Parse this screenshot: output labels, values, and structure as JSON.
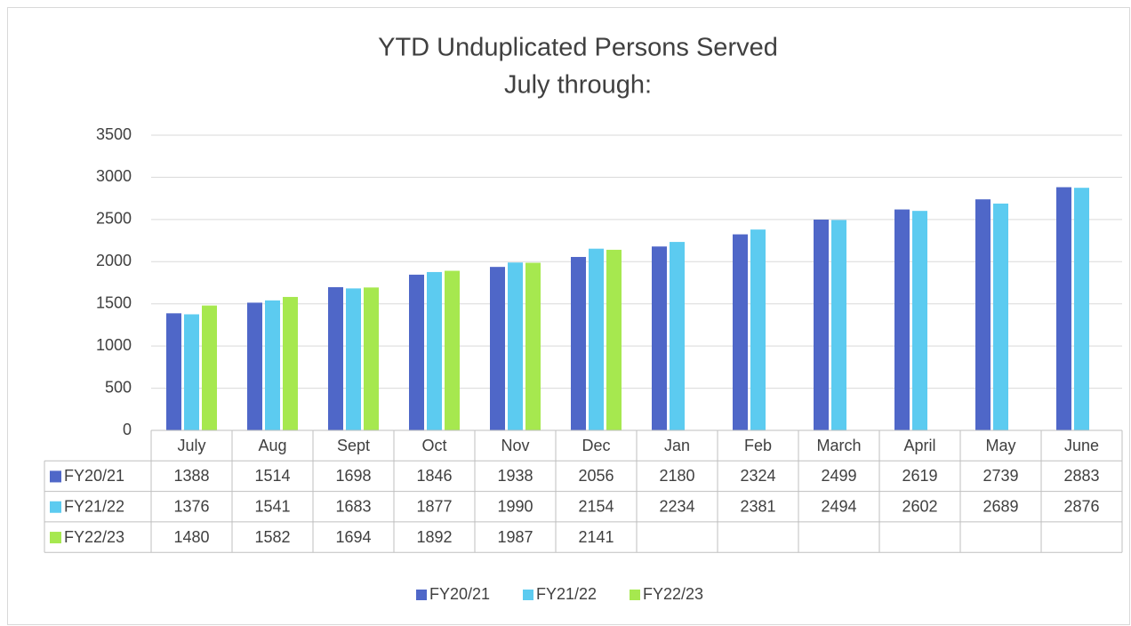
{
  "chart_data": {
    "type": "bar",
    "title": "YTD Unduplicated Persons Served",
    "subtitle": "July through:",
    "categories": [
      "July",
      "Aug",
      "Sept",
      "Oct",
      "Nov",
      "Dec",
      "Jan",
      "Feb",
      "March",
      "April",
      "May",
      "June"
    ],
    "series": [
      {
        "name": "FY20/21",
        "color": "#4f67c8",
        "values": [
          1388,
          1514,
          1698,
          1846,
          1938,
          2056,
          2180,
          2324,
          2499,
          2619,
          2739,
          2883
        ]
      },
      {
        "name": "FY21/22",
        "color": "#5ccbf0",
        "values": [
          1376,
          1541,
          1683,
          1877,
          1990,
          2154,
          2234,
          2381,
          2494,
          2602,
          2689,
          2876
        ]
      },
      {
        "name": "FY22/23",
        "color": "#a6e84f",
        "values": [
          1480,
          1582,
          1694,
          1892,
          1987,
          2141,
          null,
          null,
          null,
          null,
          null,
          null
        ]
      }
    ],
    "ylim": [
      0,
      3500
    ],
    "yticks": [
      0,
      500,
      1000,
      1500,
      2000,
      2500,
      3000,
      3500
    ],
    "grid": true,
    "legend": "bottom",
    "data_table": true
  }
}
